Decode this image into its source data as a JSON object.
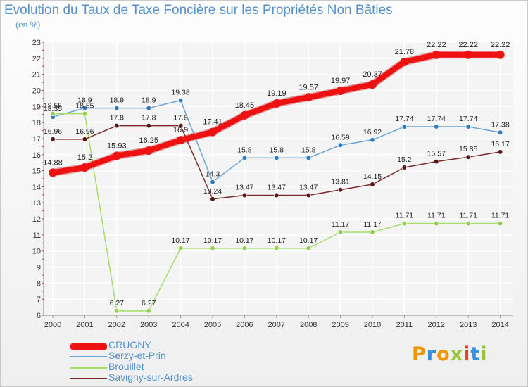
{
  "title": "Evolution du Taux de Taxe Foncière sur les Propriétés Non Bâties",
  "unit": "(en %)",
  "logo": {
    "text": "Proxiti",
    "colors": [
      "#f29400",
      "#3a8fd6",
      "#9ac33c",
      "#e8452c"
    ]
  },
  "chart_data": {
    "type": "line",
    "x": [
      "2000",
      "2001",
      "2002",
      "2003",
      "2004",
      "2005",
      "2006",
      "2007",
      "2008",
      "2009",
      "2010",
      "2011",
      "2012",
      "2013",
      "2014"
    ],
    "y_ticks": [
      6,
      7,
      8,
      9,
      10,
      11,
      12,
      13,
      14,
      15,
      16,
      17,
      18,
      19,
      20,
      21,
      22,
      23
    ],
    "ylim": [
      6,
      23
    ],
    "grid": true,
    "legend_placement": "bottom-left",
    "series": [
      {
        "name": "CRUGNY",
        "color": "#ee1111",
        "bold": true,
        "values": [
          14.88,
          15.2,
          15.93,
          16.25,
          16.9,
          17.41,
          18.45,
          19.19,
          19.57,
          19.97,
          20.37,
          21.78,
          22.22,
          22.22,
          22.22
        ],
        "labels": [
          "14.88",
          "15.2",
          "15.93",
          "16.25",
          "16.9",
          "17.41",
          "18.45",
          "19.19",
          "19.57",
          "19.97",
          "20.37",
          "21.78",
          "22.22",
          "22.22",
          "22.22"
        ]
      },
      {
        "name": "Serzy-et-Prin",
        "color": "#6aa3d5",
        "marker": "#2f7bc4",
        "values": [
          18.35,
          18.9,
          18.9,
          18.9,
          19.38,
          14.3,
          15.8,
          15.8,
          15.8,
          16.59,
          16.92,
          17.74,
          17.74,
          17.74,
          17.38
        ],
        "labels": [
          "18.35",
          "18.9",
          "18.9",
          "18.9",
          "19.38",
          "14.3",
          "15.8",
          "15.8",
          "15.8",
          "16.59",
          "16.92",
          "17.74",
          "17.74",
          "17.74",
          "17.38"
        ]
      },
      {
        "name": "Brouillet",
        "color": "#a6dc6a",
        "marker": "#8fd14a",
        "values": [
          18.55,
          18.55,
          6.27,
          6.27,
          10.17,
          10.17,
          10.17,
          10.17,
          10.17,
          11.17,
          11.17,
          11.71,
          11.71,
          11.71,
          11.71
        ],
        "labels": [
          "18.55",
          "18.55",
          "6.27",
          "6.27",
          "10.17",
          "10.17",
          "10.17",
          "10.17",
          "10.17",
          "11.17",
          "11.17",
          "11.71",
          "11.71",
          "11.71",
          "11.71"
        ]
      },
      {
        "name": "Savigny-sur-Ardres",
        "color": "#7a2a2a",
        "marker": "#5a1414",
        "values": [
          16.96,
          16.96,
          17.8,
          17.8,
          17.8,
          13.24,
          13.47,
          13.47,
          13.47,
          13.81,
          14.15,
          15.2,
          15.57,
          15.85,
          16.17
        ],
        "labels": [
          "16.96",
          "16.96",
          "17.8",
          "17.8",
          "17.8",
          "13.24",
          "13.47",
          "13.47",
          "13.47",
          "13.81",
          "14.15",
          "15.2",
          "15.57",
          "15.85",
          "16.17"
        ]
      }
    ]
  }
}
